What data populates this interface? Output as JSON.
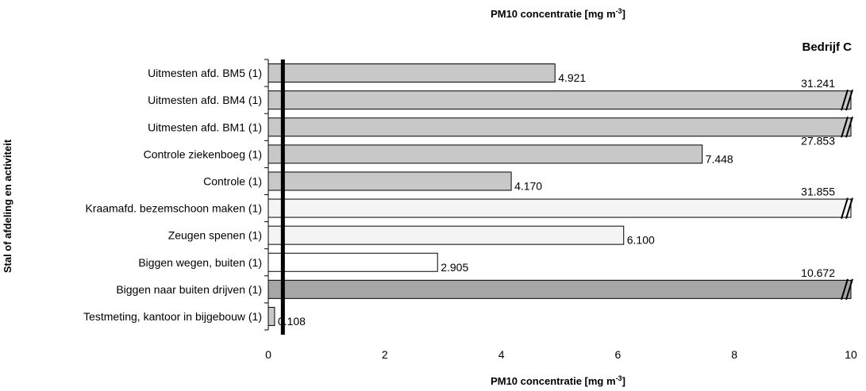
{
  "chart_data": {
    "type": "bar",
    "orientation": "horizontal",
    "title": "PM10 concentratie [mg m-3]",
    "subtitle": "Bedrijf C",
    "xlabel": "PM10 concentratie [mg m-3]",
    "ylabel": "Stal of afdeling en activiteit",
    "xlim": [
      0,
      10
    ],
    "xticks": [
      "0",
      "2",
      "4",
      "6",
      "8",
      "10"
    ],
    "reference_line_x": 0.25,
    "axis_break_marker": "//",
    "categories": [
      "Uitmesten afd. BM5 (1)",
      "Uitmesten afd. BM4 (1)",
      "Uitmesten afd. BM1 (1)",
      "Controle ziekenboeg (1)",
      "Controle (1)",
      "Kraamafd. bezemschoon maken (1)",
      "Zeugen spenen (1)",
      "Biggen wegen, buiten (1)",
      "Biggen naar buiten drijven (1)",
      "Testmeting, kantoor in bijgebouw (1)"
    ],
    "values": [
      4.921,
      31.241,
      27.853,
      7.448,
      4.17,
      31.855,
      6.1,
      2.905,
      10.672,
      0.108
    ],
    "value_labels": [
      "4.921",
      "31.241",
      "27.853",
      "7.448",
      "4.170",
      "31.855",
      "6.100",
      "2.905",
      "10.672",
      "0.108"
    ],
    "colors": [
      "#c8c8c8",
      "#c8c8c8",
      "#c8c8c8",
      "#c8c8c8",
      "#c8c8c8",
      "#f4f4f4",
      "#f4f4f4",
      "#ffffff",
      "#a6a6a6",
      "#c8c8c8"
    ],
    "grid": false,
    "legend": "none"
  }
}
